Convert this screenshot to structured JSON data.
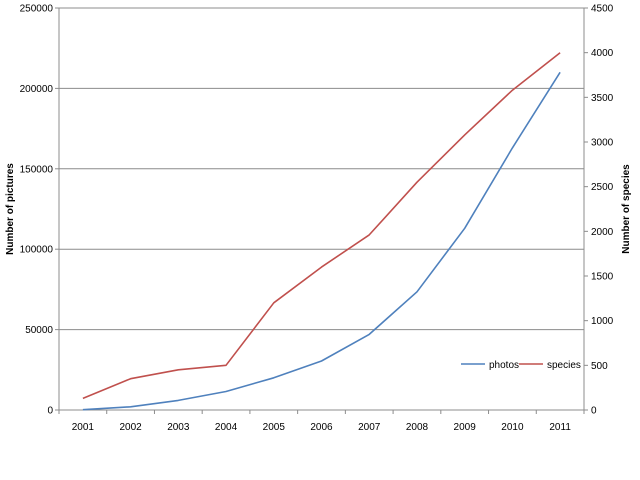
{
  "chart_data": {
    "type": "line",
    "title": "",
    "x": [
      "2001",
      "2002",
      "2003",
      "2004",
      "2005",
      "2006",
      "2007",
      "2008",
      "2009",
      "2010",
      "2011"
    ],
    "series": [
      {
        "name": "photos",
        "axis": "left",
        "color": "#4f81bd",
        "values": [
          200,
          2000,
          6000,
          11500,
          20000,
          30500,
          47000,
          73500,
          113000,
          163000,
          210000
        ]
      },
      {
        "name": "species",
        "axis": "right",
        "color": "#c0504d",
        "values": [
          130,
          350,
          450,
          500,
          1200,
          1600,
          1960,
          2550,
          3080,
          3580,
          4000
        ]
      }
    ],
    "ylabel_left": "Number of pictures",
    "ylabel_right": "Number of species",
    "ylim_left": [
      0,
      250000
    ],
    "ylim_right": [
      0,
      4500
    ],
    "yticks_left": [
      "0",
      "50000",
      "100000",
      "150000",
      "200000",
      "250000"
    ],
    "yticks_right": [
      "0",
      "500",
      "1000",
      "1500",
      "2000",
      "2500",
      "3000",
      "3500",
      "4000",
      "4500"
    ],
    "grid": "horizontal",
    "legend_position": "inside-lower-right"
  }
}
